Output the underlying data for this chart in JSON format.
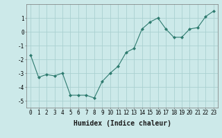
{
  "x": [
    0,
    1,
    2,
    3,
    4,
    5,
    6,
    7,
    8,
    9,
    10,
    11,
    12,
    13,
    14,
    15,
    16,
    17,
    18,
    19,
    20,
    21,
    22,
    23
  ],
  "y": [
    -1.7,
    -3.3,
    -3.1,
    -3.2,
    -3.0,
    -4.6,
    -4.6,
    -4.6,
    -4.8,
    -3.6,
    -3.0,
    -2.5,
    -1.5,
    -1.2,
    0.2,
    0.7,
    1.0,
    0.2,
    -0.4,
    -0.4,
    0.2,
    0.3,
    1.1,
    1.5
  ],
  "line_color": "#2d7a6e",
  "marker": "D",
  "marker_size": 2,
  "bg_color": "#cce9e9",
  "grid_color": "#aad0d0",
  "xlabel": "Humidex (Indice chaleur)",
  "xlim": [
    -0.5,
    23.5
  ],
  "ylim": [
    -5.5,
    2.0
  ],
  "yticks": [
    -5,
    -4,
    -3,
    -2,
    -1,
    0,
    1
  ],
  "xticks": [
    0,
    1,
    2,
    3,
    4,
    5,
    6,
    7,
    8,
    9,
    10,
    11,
    12,
    13,
    14,
    15,
    16,
    17,
    18,
    19,
    20,
    21,
    22,
    23
  ],
  "xtick_labels": [
    "0",
    "1",
    "2",
    "3",
    "4",
    "5",
    "6",
    "7",
    "8",
    "9",
    "10",
    "11",
    "12",
    "13",
    "14",
    "15",
    "16",
    "17",
    "18",
    "19",
    "20",
    "21",
    "22",
    "23"
  ],
  "label_fontsize": 7,
  "tick_fontsize": 5.5
}
